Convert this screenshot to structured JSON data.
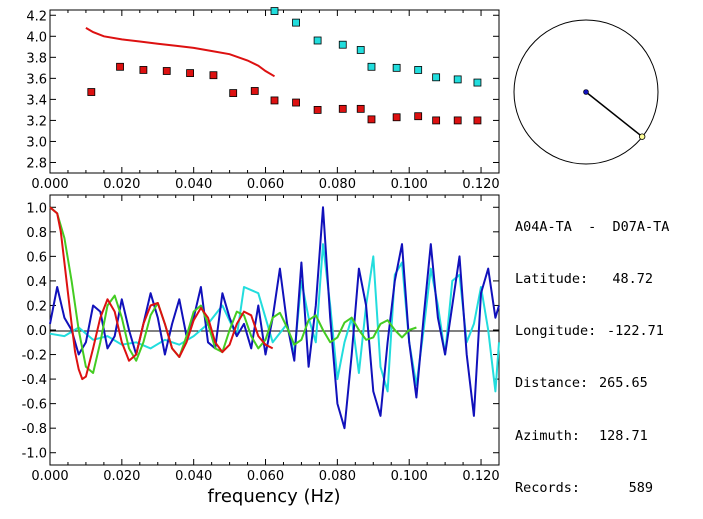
{
  "info": {
    "station_pair": "A04A-TA  -  D07A-TA",
    "rows": [
      {
        "label": "Latitude:",
        "value": "48.72"
      },
      {
        "label": "Longitude:",
        "value": "-122.71"
      },
      {
        "label": "Distance:",
        "value": "265.65"
      },
      {
        "label": "Azimuth:",
        "value": "128.71"
      },
      {
        "label": "Records:",
        "value": "589"
      }
    ]
  },
  "colors": {
    "red": "#dd1111",
    "cyan": "#22dddd",
    "blue": "#1111bb",
    "green": "#44cc22",
    "black": "#000000"
  },
  "chart_data": [
    {
      "type": "scatter",
      "xlim": [
        0.0,
        0.125
      ],
      "ylim": [
        2.7,
        4.25
      ],
      "xticks": [
        "0.000",
        "0.020",
        "0.040",
        "0.060",
        "0.080",
        "0.100",
        "0.120"
      ],
      "yticks": [
        "2.8",
        "3.0",
        "3.2",
        "3.4",
        "3.6",
        "3.8",
        "4.0",
        "4.2"
      ],
      "series": [
        {
          "kind": "line",
          "color": "red",
          "x": [
            0.01,
            0.012,
            0.015,
            0.02,
            0.025,
            0.03,
            0.035,
            0.04,
            0.045,
            0.05,
            0.055,
            0.058,
            0.06,
            0.0625
          ],
          "y": [
            4.08,
            4.04,
            4.0,
            3.97,
            3.95,
            3.93,
            3.91,
            3.89,
            3.86,
            3.83,
            3.77,
            3.72,
            3.67,
            3.62
          ]
        },
        {
          "kind": "points",
          "color": "red",
          "x": [
            0.0115,
            0.0195,
            0.026,
            0.0325,
            0.039,
            0.0455,
            0.051,
            0.057,
            0.0625,
            0.0685,
            0.0745,
            0.0815,
            0.0865,
            0.0895,
            0.0965,
            0.1025,
            0.1075,
            0.1135,
            0.119
          ],
          "y": [
            3.47,
            3.71,
            3.68,
            3.67,
            3.65,
            3.63,
            3.46,
            3.48,
            3.39,
            3.37,
            3.3,
            3.31,
            3.31,
            3.21,
            3.23,
            3.24,
            3.2,
            3.2,
            3.2
          ]
        },
        {
          "kind": "points",
          "color": "cyan",
          "x": [
            0.0625,
            0.0685,
            0.0745,
            0.0815,
            0.0865,
            0.0895,
            0.0965,
            0.1025,
            0.1075,
            0.1135,
            0.119
          ],
          "y": [
            4.24,
            4.13,
            3.96,
            3.92,
            3.87,
            3.71,
            3.7,
            3.68,
            3.61,
            3.59,
            3.56
          ]
        }
      ]
    },
    {
      "type": "line",
      "xlabel": "frequency (Hz)",
      "xlim": [
        0.0,
        0.125
      ],
      "ylim": [
        -1.1,
        1.1
      ],
      "xticks": [
        "0.000",
        "0.020",
        "0.040",
        "0.060",
        "0.080",
        "0.100",
        "0.120"
      ],
      "yticks": [
        "1.0",
        "0.8",
        "0.6",
        "0.4",
        "0.2",
        "0.0",
        "-0.2",
        "-0.4",
        "-0.6",
        "-0.8",
        "-1.0"
      ],
      "series": [
        {
          "color": "cyan",
          "x": [
            0.0,
            0.004,
            0.008,
            0.012,
            0.016,
            0.02,
            0.024,
            0.028,
            0.032,
            0.036,
            0.04,
            0.044,
            0.048,
            0.052,
            0.054,
            0.058,
            0.062,
            0.066,
            0.068,
            0.07,
            0.072,
            0.074,
            0.076,
            0.078,
            0.08,
            0.082,
            0.084,
            0.086,
            0.088,
            0.09,
            0.092,
            0.094,
            0.096,
            0.098,
            0.1,
            0.102,
            0.104,
            0.106,
            0.108,
            0.11,
            0.112,
            0.114,
            0.116,
            0.118,
            0.12,
            0.122,
            0.124,
            0.125
          ],
          "y": [
            -0.03,
            -0.05,
            0.02,
            -0.08,
            -0.05,
            -0.12,
            -0.1,
            -0.15,
            -0.08,
            -0.12,
            -0.05,
            0.05,
            0.2,
            -0.05,
            0.35,
            0.3,
            -0.1,
            0.05,
            -0.2,
            0.4,
            0.1,
            -0.1,
            0.7,
            0.2,
            -0.4,
            -0.1,
            0.1,
            -0.35,
            0.2,
            0.6,
            -0.3,
            -0.5,
            0.45,
            0.55,
            -0.1,
            -0.45,
            0.0,
            0.5,
            0.2,
            -0.2,
            0.4,
            0.45,
            -0.1,
            0.05,
            0.35,
            0.0,
            -0.5,
            -0.1
          ]
        },
        {
          "color": "blue",
          "x": [
            0.0,
            0.002,
            0.004,
            0.006,
            0.008,
            0.01,
            0.012,
            0.014,
            0.016,
            0.018,
            0.02,
            0.022,
            0.024,
            0.026,
            0.028,
            0.03,
            0.032,
            0.034,
            0.036,
            0.038,
            0.04,
            0.042,
            0.044,
            0.046,
            0.048,
            0.05,
            0.052,
            0.054,
            0.056,
            0.058,
            0.06,
            0.062,
            0.064,
            0.066,
            0.068,
            0.07,
            0.072,
            0.074,
            0.076,
            0.078,
            0.08,
            0.082,
            0.084,
            0.086,
            0.088,
            0.09,
            0.092,
            0.094,
            0.096,
            0.098,
            0.1,
            0.102,
            0.104,
            0.106,
            0.108,
            0.11,
            0.112,
            0.114,
            0.116,
            0.118,
            0.12,
            0.122,
            0.124,
            0.125
          ],
          "y": [
            0.05,
            0.35,
            0.1,
            0.0,
            -0.2,
            -0.1,
            0.2,
            0.15,
            -0.15,
            -0.05,
            0.25,
            0.0,
            -0.2,
            0.05,
            0.3,
            0.1,
            -0.2,
            0.05,
            0.25,
            -0.05,
            0.1,
            0.35,
            -0.1,
            -0.15,
            0.3,
            0.1,
            -0.05,
            0.05,
            -0.15,
            0.2,
            -0.2,
            0.1,
            0.5,
            0.05,
            -0.25,
            0.55,
            -0.3,
            0.2,
            1.0,
            0.1,
            -0.6,
            -0.8,
            -0.2,
            0.5,
            0.2,
            -0.5,
            -0.7,
            -0.1,
            0.4,
            0.7,
            -0.1,
            -0.55,
            0.1,
            0.7,
            0.1,
            -0.2,
            0.2,
            0.6,
            -0.2,
            -0.7,
            0.3,
            0.5,
            0.1,
            0.2
          ]
        },
        {
          "color": "green",
          "x": [
            0.0,
            0.002,
            0.004,
            0.006,
            0.008,
            0.01,
            0.012,
            0.014,
            0.016,
            0.018,
            0.02,
            0.022,
            0.024,
            0.026,
            0.028,
            0.03,
            0.032,
            0.034,
            0.036,
            0.038,
            0.04,
            0.042,
            0.044,
            0.046,
            0.048,
            0.05,
            0.052,
            0.054,
            0.056,
            0.058,
            0.06,
            0.062,
            0.064,
            0.066,
            0.068,
            0.07,
            0.072,
            0.074,
            0.076,
            0.078,
            0.08,
            0.082,
            0.084,
            0.086,
            0.088,
            0.09,
            0.092,
            0.094,
            0.096,
            0.098,
            0.1,
            0.102
          ],
          "y": [
            1.0,
            0.95,
            0.75,
            0.4,
            0.0,
            -0.3,
            -0.35,
            -0.1,
            0.2,
            0.28,
            0.1,
            -0.15,
            -0.25,
            -0.1,
            0.12,
            0.22,
            0.05,
            -0.15,
            -0.22,
            -0.05,
            0.15,
            0.2,
            0.05,
            -0.15,
            -0.18,
            0.0,
            0.15,
            0.12,
            -0.05,
            -0.15,
            -0.08,
            0.1,
            0.14,
            0.02,
            -0.12,
            -0.08,
            0.08,
            0.12,
            0.0,
            -0.1,
            -0.06,
            0.06,
            0.1,
            0.0,
            -0.08,
            -0.06,
            0.05,
            0.08,
            0.0,
            -0.06,
            0.0,
            0.02
          ]
        },
        {
          "color": "red",
          "x": [
            0.0,
            0.002,
            0.003,
            0.004,
            0.005,
            0.006,
            0.007,
            0.008,
            0.009,
            0.01,
            0.012,
            0.014,
            0.016,
            0.018,
            0.02,
            0.022,
            0.024,
            0.026,
            0.028,
            0.03,
            0.032,
            0.034,
            0.036,
            0.038,
            0.04,
            0.042,
            0.044,
            0.046,
            0.048,
            0.05,
            0.052,
            0.054,
            0.056,
            0.058,
            0.06,
            0.062
          ],
          "y": [
            1.0,
            0.95,
            0.8,
            0.55,
            0.3,
            0.05,
            -0.18,
            -0.32,
            -0.4,
            -0.38,
            -0.15,
            0.1,
            0.25,
            0.15,
            -0.1,
            -0.25,
            -0.2,
            0.05,
            0.2,
            0.22,
            0.05,
            -0.15,
            -0.22,
            -0.1,
            0.08,
            0.18,
            0.1,
            -0.1,
            -0.18,
            -0.12,
            0.05,
            0.15,
            0.12,
            -0.05,
            -0.12,
            -0.15
          ]
        }
      ]
    },
    {
      "type": "scatter",
      "kind": "azimuth-compass",
      "azimuth_deg": 128.71,
      "range": [
        -1,
        1
      ],
      "points": [
        {
          "name": "center",
          "x": 0,
          "y": 0,
          "color": "blue"
        },
        {
          "name": "station",
          "x": 0.78,
          "y": -0.62,
          "color": "green"
        }
      ]
    }
  ]
}
